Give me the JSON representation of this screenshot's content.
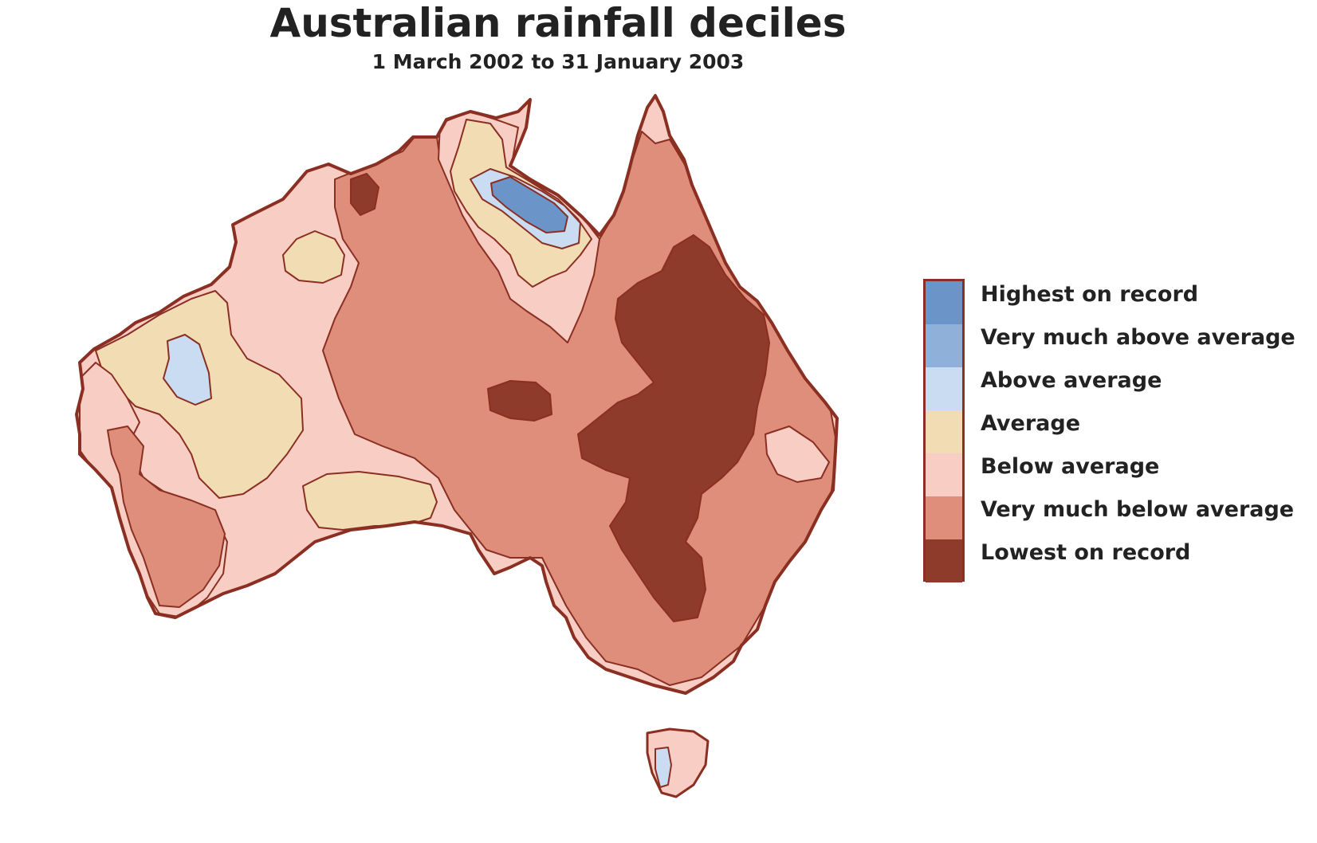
{
  "title": "Australian rainfall deciles",
  "subtitle": "1 March 2002 to 31 January 2003",
  "colors": {
    "highest_on_record": "#6b94c8",
    "very_much_above_average": "#8eb0d9",
    "above_average": "#c9dcf2",
    "average": "#f2dcb4",
    "below_average": "#f7cdc4",
    "very_much_below_average": "#df8e7b",
    "lowest_on_record": "#8e3b2c",
    "coastline": "#8a2f22"
  },
  "legend": {
    "items": [
      {
        "label": "Highest on record",
        "key": "highest_on_record"
      },
      {
        "label": "Very much above average",
        "key": "very_much_above_average"
      },
      {
        "label": "Above average",
        "key": "above_average"
      },
      {
        "label": "Average",
        "key": "average"
      },
      {
        "label": "Below average",
        "key": "below_average"
      },
      {
        "label": "Very much below average",
        "key": "very_much_below_average"
      },
      {
        "label": "Lowest on record",
        "key": "lowest_on_record"
      }
    ]
  }
}
